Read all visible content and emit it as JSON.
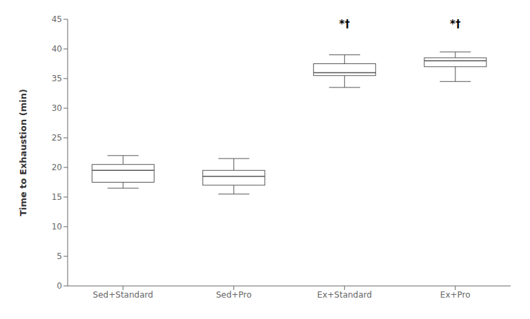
{
  "chart_data": {
    "type": "box",
    "categories": [
      "Sed+Standard",
      "Sed+Pro",
      "Ex+Standard",
      "Ex+Pro"
    ],
    "values": [
      {
        "whislo": 16.5,
        "q1": 17.5,
        "med": 19.5,
        "q3": 20.5,
        "whishi": 22.0
      },
      {
        "whislo": 15.5,
        "q1": 17.0,
        "med": 18.5,
        "q3": 19.5,
        "whishi": 21.5
      },
      {
        "whislo": 33.5,
        "q1": 35.5,
        "med": 36.0,
        "q3": 37.5,
        "whishi": 39.0
      },
      {
        "whislo": 34.5,
        "q1": 37.0,
        "med": 38.0,
        "q3": 38.5,
        "whishi": 39.5
      }
    ],
    "ylabel": "Time to Exhaustion (min)",
    "annotations": [
      {
        "text": "*†",
        "category": "Ex+Standard",
        "y": 43.0
      },
      {
        "text": "*†",
        "category": "Ex+Pro",
        "y": 43.0
      }
    ],
    "ylim": [
      0,
      45
    ],
    "yticks": [
      0,
      5,
      10,
      15,
      20,
      25,
      30,
      35,
      40,
      45
    ],
    "color": "#555555"
  }
}
